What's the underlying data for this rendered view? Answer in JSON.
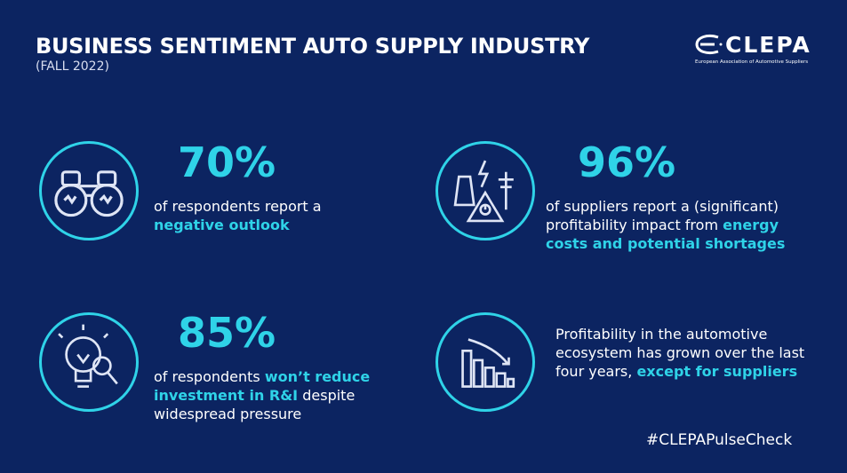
{
  "header": {
    "title": "BUSINESS SENTIMENT AUTO SUPPLY INDUSTRY",
    "subtitle": "(FALL 2022)"
  },
  "logo": {
    "name": "CLEPA",
    "tagline": "European Association of Automotive Suppliers"
  },
  "colors": {
    "background": "#0c2461",
    "accent": "#2fd3e8"
  },
  "stats": [
    {
      "icon": "binoculars-icon",
      "value": "70%",
      "text": "of respondents report a ",
      "highlight": "negative outlook",
      "text_after": ""
    },
    {
      "icon": "energy-warning-icon",
      "value": "96%",
      "text": "of suppliers report a (significant) profitability impact from ",
      "highlight": "energy costs and potential shortages",
      "text_after": ""
    },
    {
      "icon": "lightbulb-magnifier-icon",
      "value": "85%",
      "text": "of respondents ",
      "highlight": "won’t reduce investment in R&I",
      "text_after": " despite widespread pressure"
    },
    {
      "icon": "declining-bars-icon",
      "value": "",
      "text": "Profitability in the automotive ecosystem has grown over the last four years, ",
      "highlight": "except for suppliers",
      "text_after": ""
    }
  ],
  "hashtag": "#CLEPAPulseCheck"
}
